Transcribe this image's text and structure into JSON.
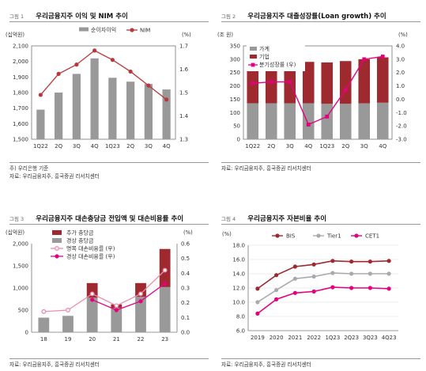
{
  "colors": {
    "gray_bar": "#999999",
    "red_bar": "#9e2a2f",
    "nim_line": "#b9373a",
    "loan_line": "#e6007e",
    "pink_light": "#f08cab",
    "pink_dark": "#e6007e"
  },
  "figures": [
    {
      "fig_no": "그림 1",
      "title": "우리금융지주 이익 및 NIM 추이",
      "chart_data": {
        "type": "bar",
        "categories": [
          "1Q22",
          "2Q",
          "3Q",
          "4Q",
          "1Q23",
          "2Q",
          "3Q",
          "4Q"
        ],
        "left_unit": "(십억원)",
        "right_unit": "(%)",
        "left_ylim": [
          1500,
          2100
        ],
        "left_ticks": [
          "1,500",
          "1,600",
          "1,700",
          "1,800",
          "1,900",
          "2,000",
          "2,100"
        ],
        "right_ylim": [
          1.3,
          1.7
        ],
        "right_ticks": [
          "1.3",
          "1.4",
          "1.5",
          "1.6",
          "1.7"
        ],
        "series": [
          {
            "name": "순이자이익",
            "type": "bar",
            "axis": "left",
            "values": [
              1690,
              1800,
              1920,
              2020,
              1895,
              1870,
              1855,
              1820
            ]
          },
          {
            "name": "NIM",
            "type": "line",
            "axis": "right",
            "values": [
              1.49,
              1.58,
              1.62,
              1.68,
              1.64,
              1.59,
              1.53,
              1.47
            ]
          }
        ]
      },
      "footnotes": [
        "주) 우리은행 기준",
        "자료: 우리금융지주, 흥국증권 리서치센터"
      ]
    },
    {
      "fig_no": "그림 2",
      "title": "우리금융지주 대출성장률(Loan growth) 추이",
      "chart_data": {
        "type": "bar",
        "categories": [
          "1Q22",
          "2Q",
          "3Q",
          "4Q",
          "1Q23",
          "2Q",
          "3Q",
          "4Q"
        ],
        "left_unit": "(조 원)",
        "right_unit": "(%)",
        "left_ylim": [
          0,
          350
        ],
        "left_ticks": [
          "0",
          "50",
          "100",
          "150",
          "200",
          "250",
          "300",
          "350"
        ],
        "right_ylim": [
          -3.0,
          4.0
        ],
        "right_ticks": [
          "-3.0",
          "-2.0",
          "-1.0",
          "0.0",
          "1.0",
          "2.0",
          "3.0",
          "4.0"
        ],
        "stacked": true,
        "series": [
          {
            "name": "가계",
            "type": "bar",
            "axis": "left",
            "values": [
              135,
              135,
              135,
              135,
              133,
              133,
              135,
              137
            ]
          },
          {
            "name": "기업",
            "type": "bar",
            "axis": "left",
            "values": [
              155,
              157,
              160,
              155,
              155,
              160,
              165,
              170
            ]
          },
          {
            "name": "분기성장률 (우)",
            "type": "line",
            "axis": "right",
            "values": [
              1.2,
              1.3,
              1.3,
              -1.9,
              -1.3,
              0.7,
              3.0,
              3.2
            ]
          }
        ]
      },
      "footnotes": [
        "자료: 우리금융지주, 흥국증권 리서치센터"
      ]
    },
    {
      "fig_no": "그림 3",
      "title": "우리금융지주 대손충당금 전입액 및 대손비용률 추이",
      "chart_data": {
        "type": "bar",
        "categories": [
          "18",
          "19",
          "20",
          "21",
          "22",
          "23"
        ],
        "left_unit": "(십억원)",
        "right_unit": "(%)",
        "left_ylim": [
          0,
          2000
        ],
        "left_ticks": [
          "0",
          "500",
          "1,000",
          "1,500",
          "2,000"
        ],
        "right_ylim": [
          0.0,
          0.6
        ],
        "right_ticks": [
          "0.0",
          "0.1",
          "0.2",
          "0.3",
          "0.4",
          "0.5",
          "0.6"
        ],
        "stacked": true,
        "series": [
          {
            "name": "경상 충당금",
            "type": "bar",
            "axis": "left",
            "values": [
              330,
              370,
              780,
              550,
              800,
              1020
            ]
          },
          {
            "name": "추가 충당금",
            "type": "bar",
            "axis": "left",
            "values": [
              0,
              0,
              330,
              80,
              310,
              860
            ]
          },
          {
            "name": "명목 대손비용률 (우)",
            "type": "line",
            "axis": "right",
            "values": [
              0.14,
              0.15,
              0.26,
              0.18,
              0.26,
              0.42
            ]
          },
          {
            "name": "경상 대손비용률 (우)",
            "type": "line",
            "axis": "right",
            "values": [
              null,
              null,
              0.22,
              0.15,
              0.21,
              0.33
            ]
          }
        ]
      },
      "footnotes": [
        "자료: 우리금융지주, 흥국증권 리서치센터"
      ]
    },
    {
      "fig_no": "그림 4",
      "title": "우리금융지주 자본비율 추이",
      "chart_data": {
        "type": "line",
        "categories": [
          "2019",
          "2020",
          "2021",
          "2022",
          "1Q23",
          "2Q23",
          "3Q23",
          "4Q23"
        ],
        "left_unit": "(%)",
        "left_ylim": [
          6.0,
          18.0
        ],
        "left_ticks": [
          "6.0",
          "8.0",
          "10.0",
          "12.0",
          "14.0",
          "16.0",
          "18.0"
        ],
        "series": [
          {
            "name": "BIS",
            "type": "line",
            "axis": "left",
            "values": [
              11.9,
              13.8,
              15.0,
              15.3,
              15.8,
              15.7,
              15.7,
              15.8
            ]
          },
          {
            "name": "Tier1",
            "type": "line",
            "axis": "left",
            "values": [
              10.0,
              11.7,
              13.3,
              13.6,
              14.1,
              14.0,
              14.0,
              14.0
            ]
          },
          {
            "name": "CET1",
            "type": "line",
            "axis": "left",
            "values": [
              8.4,
              10.4,
              11.3,
              11.5,
              12.1,
              12.0,
              12.0,
              11.9
            ]
          }
        ]
      },
      "footnotes": [
        "자료: 우리금융지주, 흥국증권 리서치센터"
      ]
    }
  ]
}
